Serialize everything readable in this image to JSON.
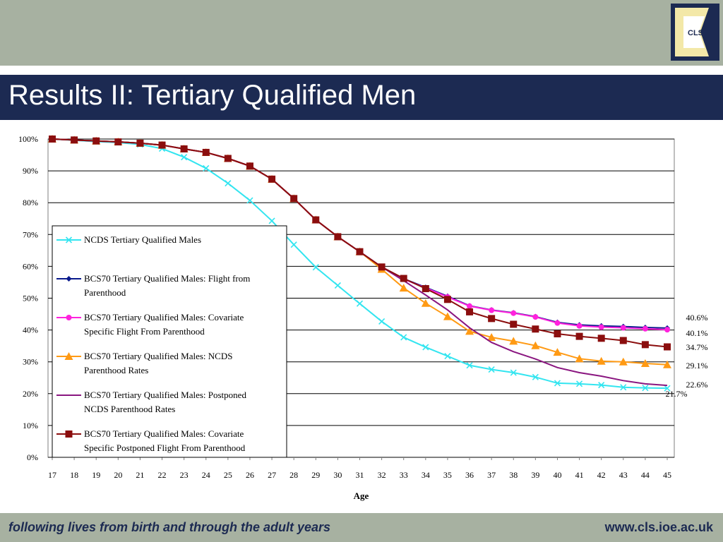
{
  "header": {
    "logo_text": "CLS",
    "title": "Results II: Tertiary Qualified Men"
  },
  "footer": {
    "tagline": "following lives from birth and through the adult years",
    "url": "www.cls.ioe.ac.uk"
  },
  "colors": {
    "navy": "#1c2a52",
    "band_grey": "#a7b1a1",
    "logo_cream": "#f3e8a8"
  },
  "chart_data": {
    "type": "line",
    "title": "",
    "xlabel": "Age",
    "ylabel": "",
    "x": [
      17,
      18,
      19,
      20,
      21,
      22,
      23,
      24,
      25,
      26,
      27,
      28,
      29,
      30,
      31,
      32,
      33,
      34,
      35,
      36,
      37,
      38,
      39,
      40,
      41,
      42,
      43,
      44,
      45
    ],
    "ylim": [
      0,
      100
    ],
    "y_ticks": [
      "0%",
      "10%",
      "20%",
      "30%",
      "40%",
      "50%",
      "60%",
      "70%",
      "80%",
      "90%",
      "100%"
    ],
    "grid": true,
    "legend_position": "left",
    "series": [
      {
        "name": "NCDS Tertiary Qualified Males",
        "color": "#33e5f0",
        "marker": "x",
        "values": [
          100,
          99.6,
          99.2,
          98.9,
          98.3,
          97,
          94.3,
          90.8,
          86.1,
          80.7,
          74.3,
          66.8,
          59.7,
          54,
          48.3,
          42.7,
          37.7,
          34.6,
          31.8,
          28.9,
          27.6,
          26.6,
          25.2,
          23.3,
          23.1,
          22.7,
          22,
          21.8,
          21.7
        ]
      },
      {
        "name": "BCS70 Tertiary Qualified Males: Flight from Parenthood",
        "color": "#0a1a8c",
        "marker": "diamond",
        "values": [
          100,
          99.7,
          99.4,
          99.1,
          98.7,
          98.1,
          96.9,
          95.8,
          93.9,
          91.5,
          87.4,
          81.3,
          74.6,
          69.3,
          64.6,
          59.8,
          56.1,
          53.4,
          50.6,
          47.6,
          46.3,
          45.4,
          44.2,
          42.4,
          41.6,
          41.3,
          41.1,
          40.8,
          40.6
        ]
      },
      {
        "name": "BCS70 Tertiary Qualified Males: Covariate Specific Flight From Parenthood",
        "color": "#ff22dd",
        "marker": "circle",
        "values": [
          100,
          99.7,
          99.4,
          99.1,
          98.7,
          98.1,
          96.9,
          95.8,
          93.9,
          91.5,
          87.4,
          81.3,
          74.6,
          69.3,
          64.6,
          59.8,
          56,
          53.2,
          50.4,
          47.5,
          46.2,
          45.3,
          44.1,
          42.2,
          41.3,
          40.9,
          40.7,
          40.4,
          40.1
        ]
      },
      {
        "name": "BCS70 Tertiary Qualified Males: NCDS Parenthood Rates",
        "color": "#ff9a14",
        "marker": "triangle",
        "values": [
          100,
          99.7,
          99.4,
          99.1,
          98.7,
          98.1,
          96.9,
          95.8,
          93.9,
          91.5,
          87.4,
          81.3,
          74.6,
          69.3,
          64.6,
          59.1,
          53.2,
          48.4,
          44.2,
          39.6,
          37.7,
          36.5,
          35.1,
          33,
          31,
          30.2,
          30,
          29.5,
          29.1
        ]
      },
      {
        "name": "BCS70 Tertiary Qualified Males: Postponed NCDS Parenthood Rates",
        "color": "#8a1680",
        "marker": "none",
        "values": [
          100,
          99.7,
          99.4,
          99.1,
          98.7,
          98.1,
          96.9,
          95.8,
          93.9,
          91.5,
          87.4,
          81.3,
          74.6,
          69.3,
          64.6,
          59.8,
          55.5,
          51,
          46.3,
          40.7,
          36.1,
          33.2,
          30.9,
          28.2,
          26.6,
          25.5,
          24.1,
          23.1,
          22.6
        ]
      },
      {
        "name": "BCS70 Tertiary Qualified Males: Covariate Specific Postponed Flight From Parenthood",
        "color": "#8b0e0e",
        "marker": "square",
        "values": [
          100,
          99.7,
          99.4,
          99.1,
          98.7,
          98.1,
          96.9,
          95.8,
          93.9,
          91.5,
          87.4,
          81.3,
          74.6,
          69.3,
          64.6,
          59.8,
          56.2,
          53,
          49.6,
          45.7,
          43.6,
          41.8,
          40.3,
          38.8,
          38,
          37.4,
          36.7,
          35.4,
          34.7
        ]
      }
    ],
    "end_labels": [
      "40.6%",
      "40.1%",
      "34.7%",
      "29.1%",
      "22.6%",
      "21.7%"
    ]
  }
}
